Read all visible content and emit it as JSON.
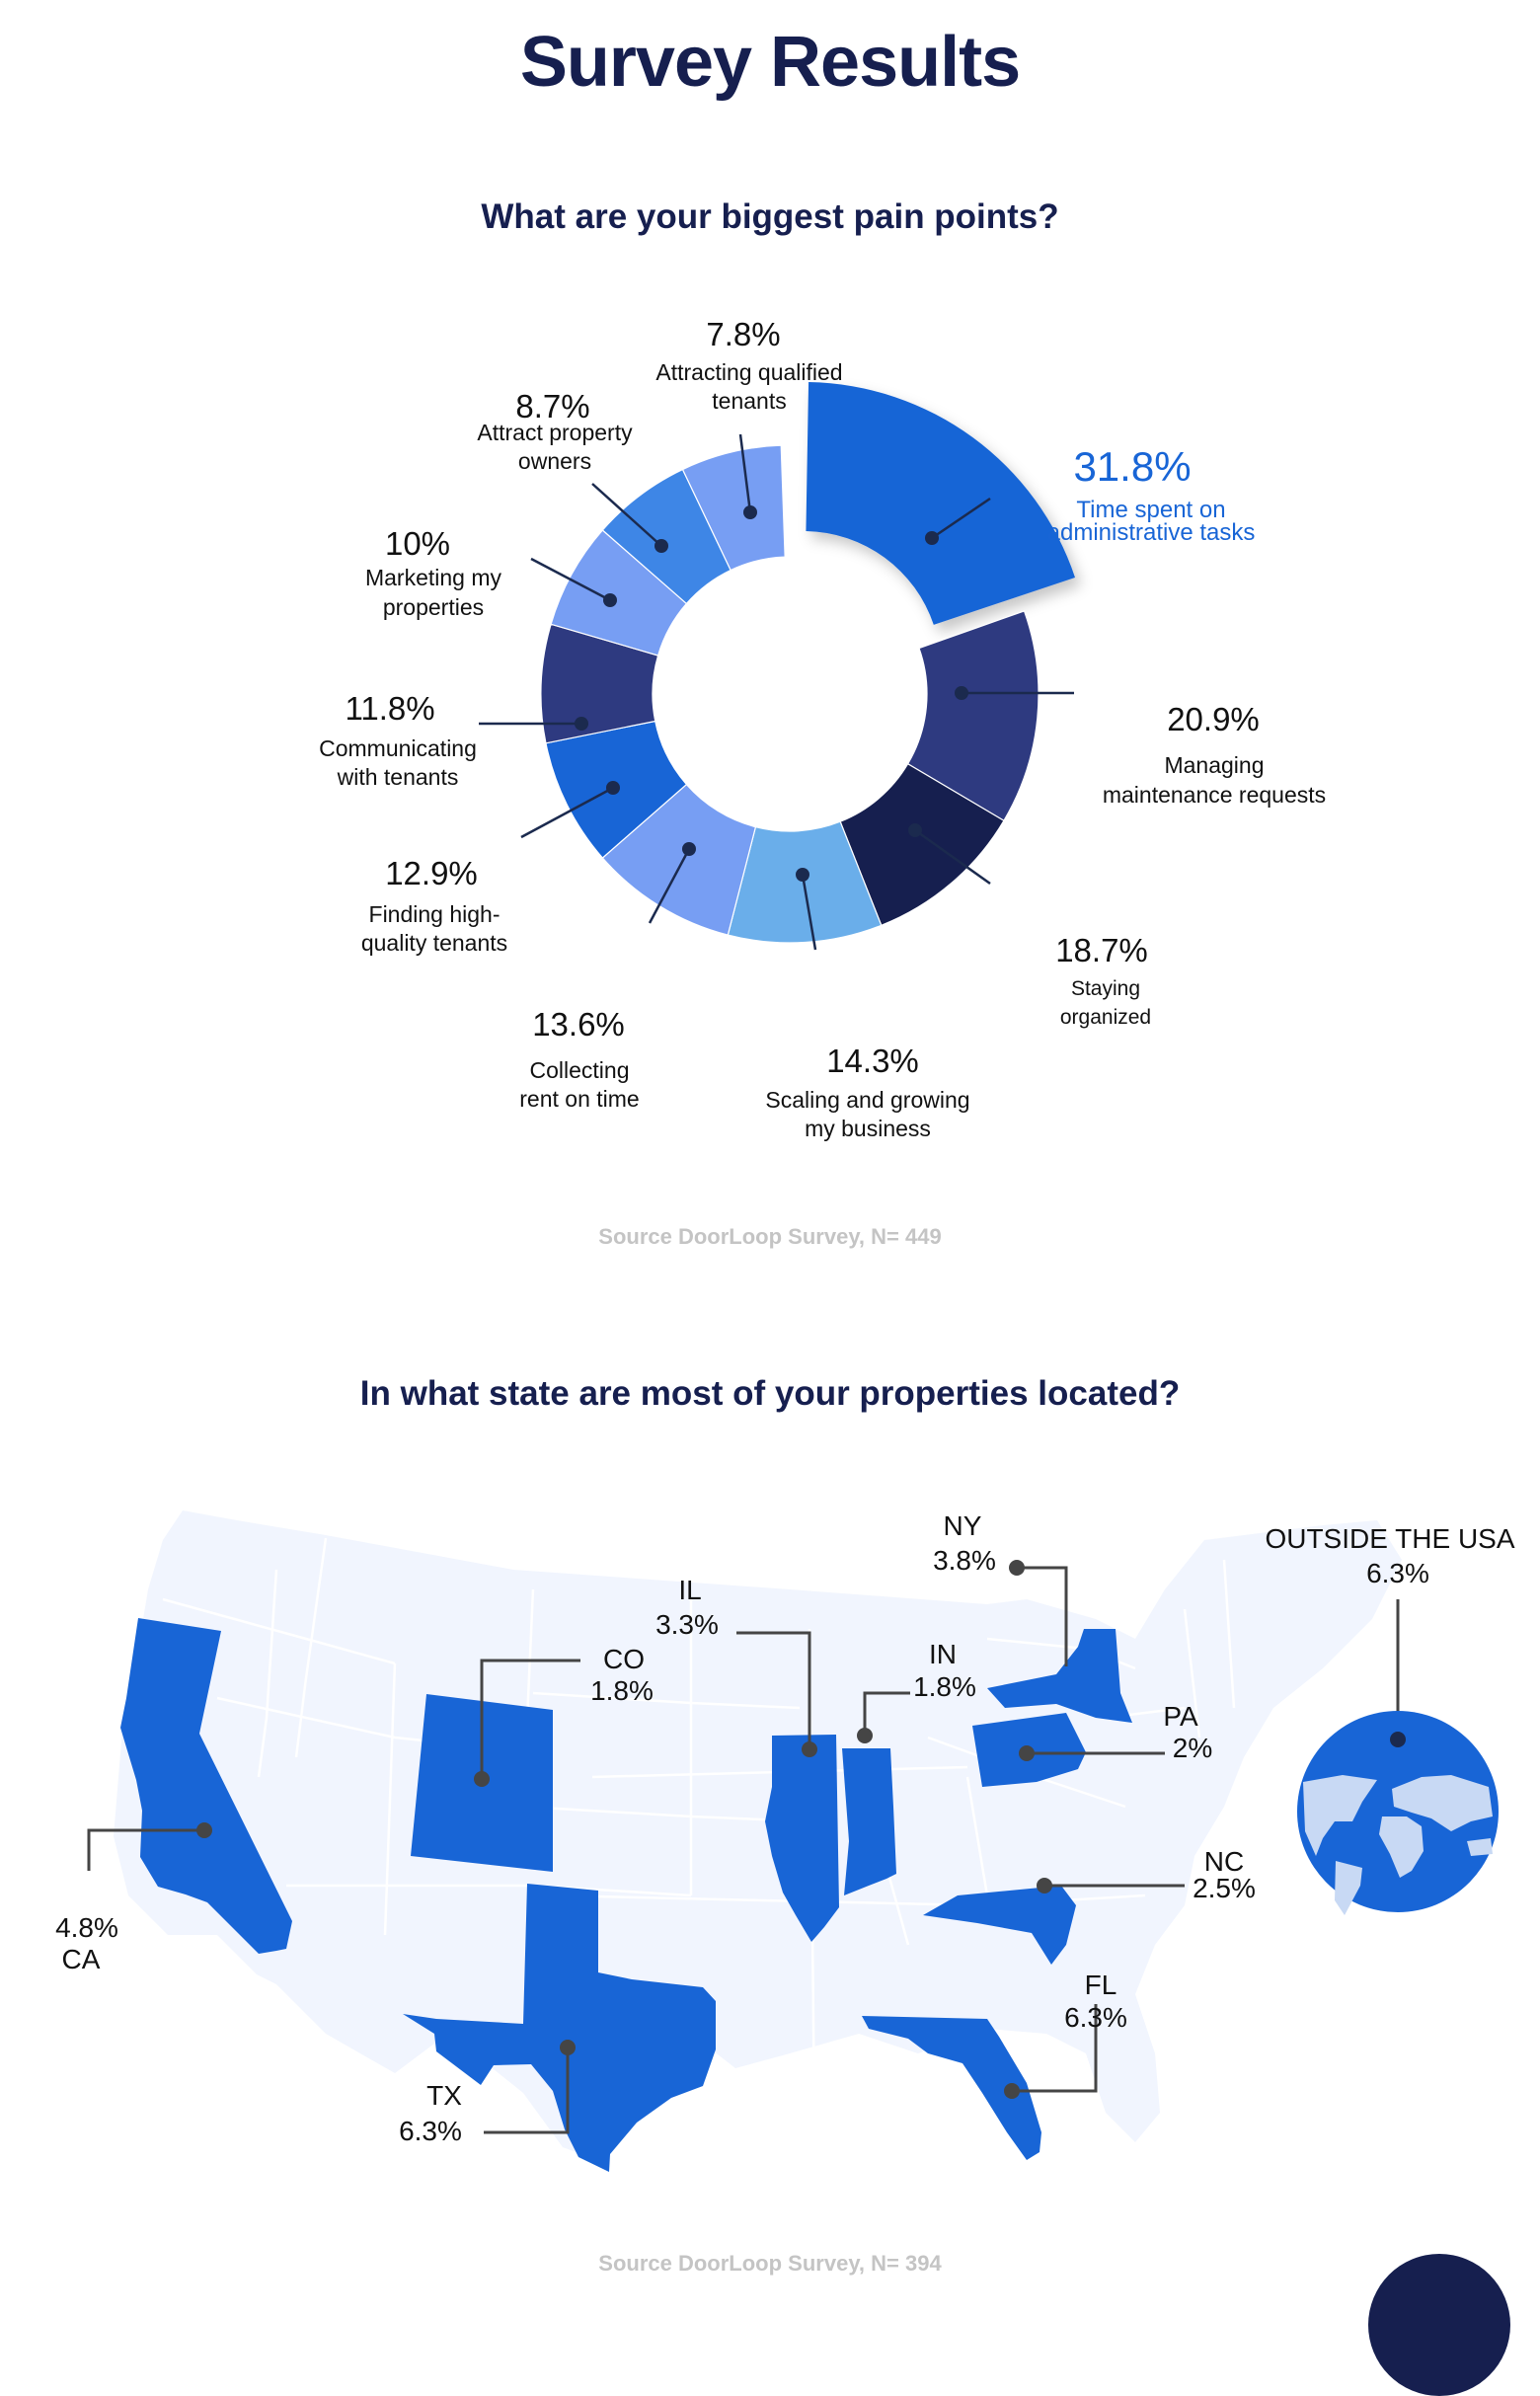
{
  "page": {
    "title": "Survey Results"
  },
  "pain_points": {
    "question": "What are your biggest pain points?",
    "source": "Source DoorLoop Survey, N= 449",
    "segments": [
      {
        "pct": "31.8%",
        "line1": "Time spent on",
        "line2": "administrative tasks",
        "color": "#1865d6",
        "highlight": true
      },
      {
        "pct": "20.9%",
        "line1": "Managing",
        "line2": "maintenance requests",
        "color": "#2e3a80"
      },
      {
        "pct": "18.7%",
        "line1": "Staying",
        "line2": "organized",
        "color": "#161f4f"
      },
      {
        "pct": "14.3%",
        "line1": "Scaling and growing",
        "line2": "my business",
        "color": "#6aaeea"
      },
      {
        "pct": "13.6%",
        "line1": "Collecting",
        "line2": "rent on time",
        "color": "#779ef3"
      },
      {
        "pct": "12.9%",
        "line1": "Finding high-",
        "line2": "quality tenants",
        "color": "#1865d6"
      },
      {
        "pct": "11.8%",
        "line1": "Communicating",
        "line2": "with tenants",
        "color": "#2e3a80"
      },
      {
        "pct": "10%",
        "line1": "Marketing my",
        "line2": "properties",
        "color": "#779ef3"
      },
      {
        "pct": "8.7%",
        "line1": "Attract property",
        "line2": "owners",
        "color": "#3e86e6"
      },
      {
        "pct": "7.8%",
        "line1": "Attracting qualified",
        "line2": "tenants",
        "color": "#779ef3"
      }
    ]
  },
  "states": {
    "question": "In what state are most of your properties located?",
    "source": "Source DoorLoop Survey, N= 394",
    "items": [
      {
        "state": "CA",
        "pct": "4.8%"
      },
      {
        "state": "CO",
        "pct": "1.8%"
      },
      {
        "state": "IL",
        "pct": "3.3%"
      },
      {
        "state": "IN",
        "pct": "1.8%"
      },
      {
        "state": "NY",
        "pct": "3.8%"
      },
      {
        "state": "PA",
        "pct": "2%"
      },
      {
        "state": "NC",
        "pct": "2.5%"
      },
      {
        "state": "FL",
        "pct": "6.3%"
      },
      {
        "state": "TX",
        "pct": "6.3%"
      }
    ],
    "outside": {
      "label": "OUTSIDE THE USA",
      "pct": "6.3%"
    }
  },
  "colors": {
    "navy": "#161f4f",
    "accent_blue": "#1865d6",
    "map_base": "#f1f5fe",
    "map_border": "#ffffff",
    "leader": "#454545",
    "source_gray": "#c4c4c4"
  },
  "chart_data": [
    {
      "type": "pie",
      "title": "What are your biggest pain points?",
      "variant": "donut",
      "categories": [
        "Time spent on administrative tasks",
        "Managing maintenance requests",
        "Staying organized",
        "Scaling and growing my business",
        "Collecting rent on time",
        "Finding high-quality tenants",
        "Communicating with tenants",
        "Marketing my properties",
        "Attract property owners",
        "Attracting qualified tenants"
      ],
      "values": [
        31.8,
        20.9,
        18.7,
        14.3,
        13.6,
        12.9,
        11.8,
        10,
        8.7,
        7.8
      ],
      "unit": "%",
      "exploded": "Time spent on administrative tasks",
      "annotation": "Source DoorLoop Survey, N= 449"
    },
    {
      "type": "table",
      "title": "In what state are most of your properties located?",
      "categories": [
        "CA",
        "CO",
        "IL",
        "IN",
        "NY",
        "PA",
        "NC",
        "FL",
        "TX",
        "OUTSIDE THE USA"
      ],
      "values": [
        4.8,
        1.8,
        3.3,
        1.8,
        3.8,
        2,
        2.5,
        6.3,
        6.3,
        6.3
      ],
      "unit": "%",
      "annotation": "Source DoorLoop Survey, N= 394"
    }
  ]
}
